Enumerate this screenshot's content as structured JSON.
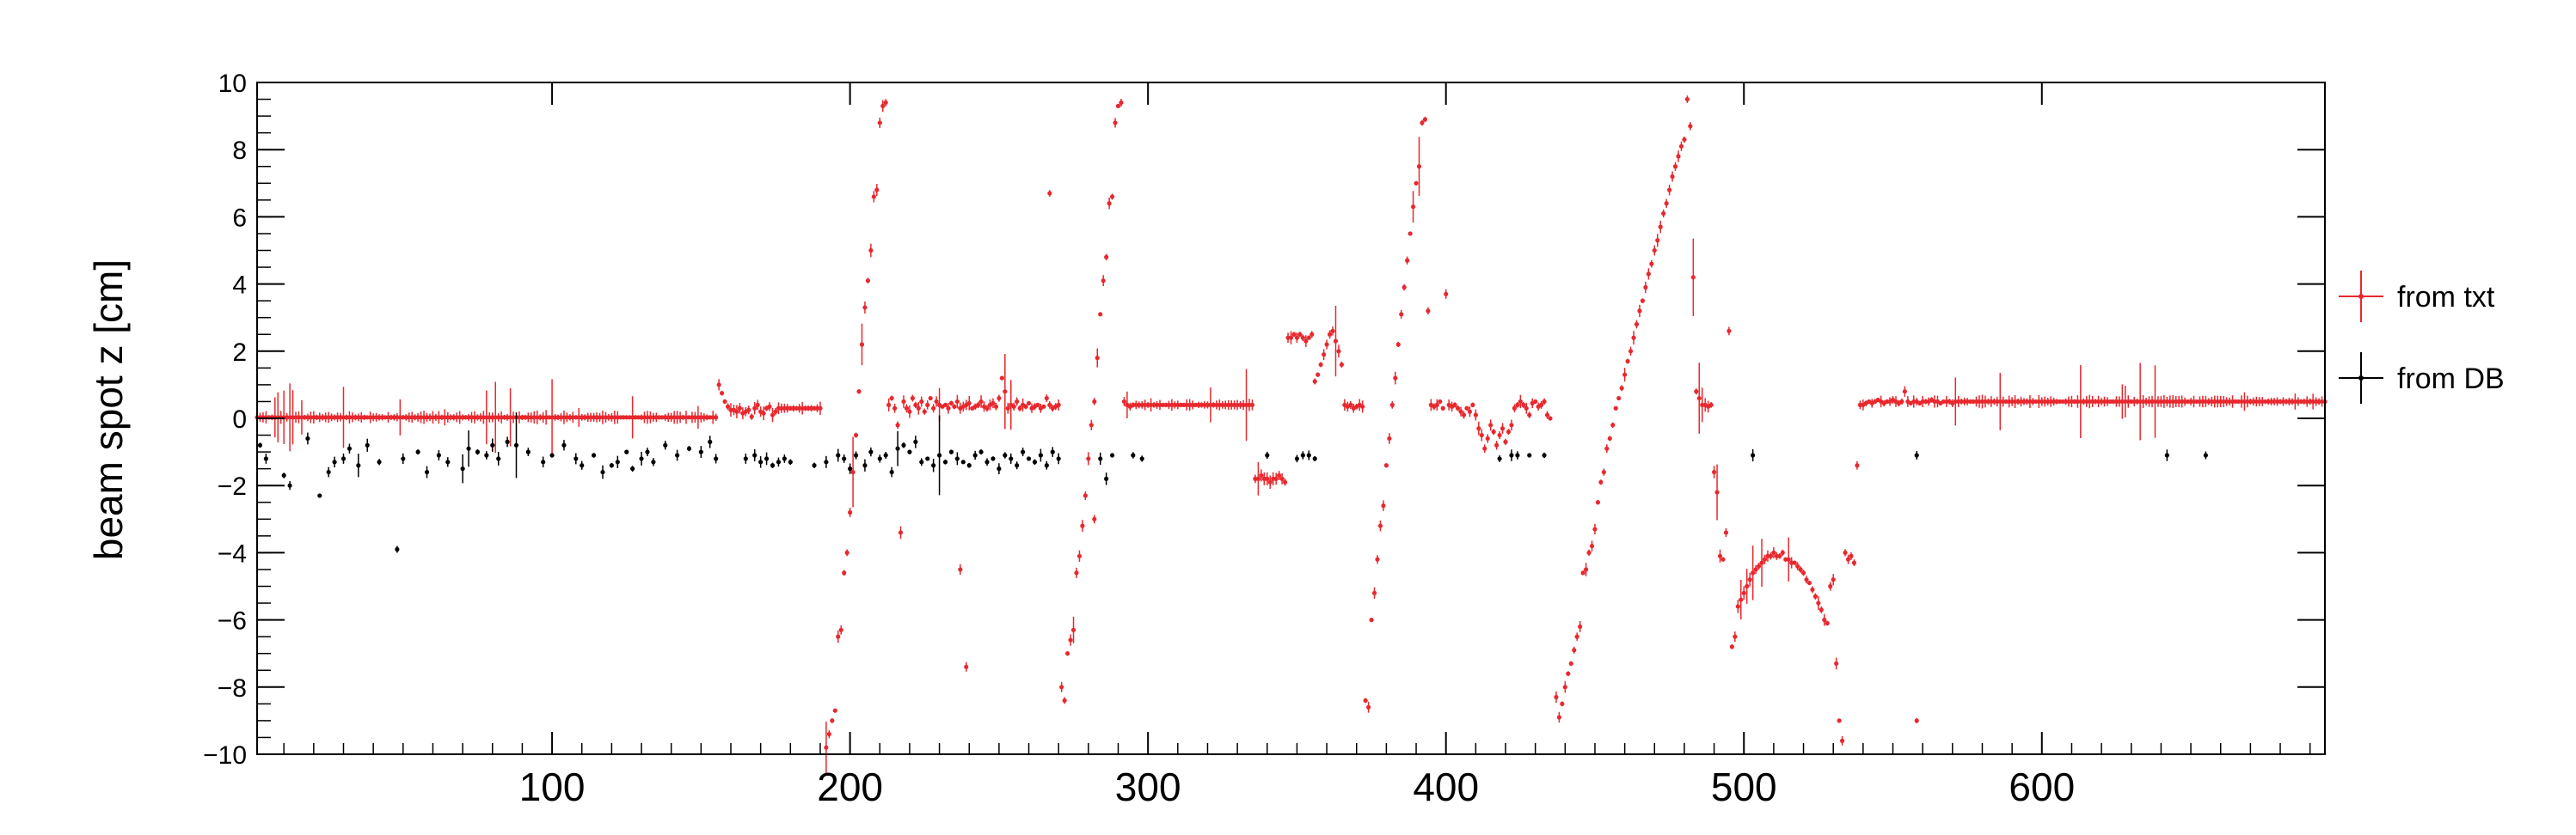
{
  "chart_data": {
    "type": "scatter",
    "title": "",
    "xlabel": "",
    "ylabel": "beam spot z [cm]",
    "xlim": [
      1,
      695
    ],
    "ylim": [
      -10,
      10
    ],
    "x_tick_labels": [
      100,
      200,
      300,
      400,
      500,
      600
    ],
    "y_tick_labels": [
      -10,
      -8,
      -6,
      -4,
      -2,
      0,
      2,
      4,
      6,
      8,
      10
    ],
    "grid": false,
    "legend_position": "right",
    "series": [
      {
        "name": "from txt",
        "color": "#e8282e",
        "segments": [
          {
            "x_from": 1,
            "x_to": 155,
            "values": [
              0.03
            ]
          },
          {
            "x_from": 156,
            "x_to": 160,
            "values": [
              1.0,
              0.75,
              0.5,
              0.35,
              0.25
            ]
          },
          {
            "x_from": 161,
            "x_to": 175,
            "values": [
              0.25,
              0.2,
              0.3,
              0.15,
              0.2,
              0.25,
              0.05,
              0.3,
              0.4,
              0.2,
              0.15,
              0.3,
              0.35,
              0.1,
              0.2
            ]
          },
          {
            "x_from": 176,
            "x_to": 190,
            "values": [
              0.3
            ]
          },
          {
            "x_from": 192,
            "x_to": 212,
            "values": [
              -9.8,
              -9.4,
              -9.0,
              -8.7,
              -6.5,
              -6.3,
              -4.6,
              -4.0,
              -2.8,
              -1.6,
              -0.5,
              0.8,
              2.2,
              3.3,
              4.1,
              5.0,
              6.6,
              6.8,
              8.8,
              9.3,
              9.4
            ]
          },
          {
            "x_from": 213,
            "x_to": 230,
            "values": [
              0.4,
              0.6,
              0.3,
              -0.2,
              -3.4,
              0.5,
              0.3,
              0.2,
              0.6,
              0.4,
              0.3,
              0.5,
              0.2,
              0.4,
              0.6,
              0.3,
              0.5,
              0.4
            ]
          },
          {
            "x_from": 231,
            "x_to": 270,
            "values": [
              0.35,
              0.4,
              0.3,
              0.45,
              0.35,
              0.5,
              0.3,
              0.35,
              0.4,
              0.45,
              0.3,
              0.35,
              0.4,
              0.5,
              0.35,
              0.3,
              0.4,
              0.45,
              0.35,
              0.6,
              1.2,
              0.8,
              0.3,
              0.4,
              0.35,
              0.5,
              0.3,
              0.4,
              0.35,
              0.45,
              0.3,
              0.35,
              0.4,
              0.3,
              0.35,
              0.6,
              0.4,
              0.3,
              0.35,
              0.4
            ]
          },
          {
            "x_from": 271,
            "x_to": 295,
            "values": [
              -8.0,
              -8.4,
              -7.0,
              -6.6,
              -6.3,
              -4.6,
              -4.1,
              -3.2,
              -2.3,
              -1.2,
              -0.2,
              0.5,
              1.8,
              3.1,
              4.1,
              4.8,
              6.4,
              6.6,
              8.8,
              9.3,
              9.4,
              0.5,
              0.4,
              0.35,
              0.4
            ]
          },
          {
            "x_from": 296,
            "x_to": 335,
            "values": [
              0.4
            ]
          },
          {
            "x_from": 336,
            "x_to": 355,
            "values": [
              -1.8,
              -1.8,
              -1.7,
              -1.8,
              -1.8,
              -1.9,
              -1.8,
              -1.8,
              -1.7,
              -1.8,
              -1.9,
              2.4,
              2.4,
              2.5,
              2.4,
              2.5,
              2.4,
              2.3,
              2.4,
              2.5
            ]
          },
          {
            "x_from": 356,
            "x_to": 365,
            "values": [
              1.1,
              1.3,
              1.6,
              1.9,
              2.2,
              2.5,
              2.6,
              2.3,
              2.0,
              1.6
            ]
          },
          {
            "x_from": 366,
            "x_to": 376,
            "values": [
              0.4,
              0.35,
              0.4,
              0.3,
              0.35,
              0.4,
              0.35,
              -8.4,
              -8.6,
              -6.0,
              -5.2
            ]
          },
          {
            "x_from": 377,
            "x_to": 396,
            "values": [
              -4.2,
              -3.2,
              -2.6,
              -1.4,
              -0.6,
              0.4,
              1.2,
              2.2,
              3.1,
              3.9,
              4.7,
              5.5,
              6.3,
              7.0,
              7.5,
              8.8,
              8.9,
              3.2,
              0.4,
              0.35
            ]
          },
          {
            "x_from": 397,
            "x_to": 410,
            "values": [
              0.4,
              0.5,
              0.3,
              3.7,
              0.4,
              0.35,
              0.4,
              0.3,
              0.2,
              0.1,
              0.3,
              0.2,
              0.4,
              0.1
            ]
          },
          {
            "x_from": 411,
            "x_to": 435,
            "values": [
              -0.3,
              -0.5,
              -0.9,
              -0.6,
              -0.2,
              -0.4,
              -0.8,
              -0.5,
              -0.3,
              -0.7,
              -0.4,
              -0.2,
              0.3,
              0.4,
              0.5,
              0.4,
              0.3,
              0.1,
              0.45,
              0.5,
              0.35,
              0.4,
              0.5,
              0.1,
              0.0
            ]
          },
          {
            "x_from": 437,
            "x_to": 492,
            "values": [
              -8.3,
              -8.9,
              -8.5,
              -8.0,
              -7.6,
              -7.3,
              -6.9,
              -6.5,
              -6.2,
              -4.6,
              -4.5,
              -4.0,
              -3.8,
              -3.3,
              -2.5,
              -1.9,
              -1.6,
              -0.9,
              -0.6,
              -0.2,
              0.3,
              0.6,
              0.9,
              1.3,
              1.7,
              2.0,
              2.4,
              2.8,
              3.2,
              3.5,
              3.9,
              4.3,
              4.6,
              5.0,
              5.3,
              5.7,
              6.1,
              6.4,
              6.8,
              7.2,
              7.5,
              7.8,
              8.1,
              8.3,
              9.5,
              8.7,
              4.2,
              0.8,
              0.6,
              0.4,
              0.4,
              0.35,
              0.4,
              -1.6,
              -2.2,
              -4.1
            ]
          },
          {
            "x_from": 493,
            "x_to": 515,
            "values": [
              -4.2,
              -3.4,
              2.6,
              -6.8,
              -6.5,
              -5.6,
              -5.4,
              -5.2,
              -5.0,
              -4.8,
              -4.6,
              -4.5,
              -4.4,
              -4.3,
              -4.2,
              -4.1,
              -4.1,
              -4.0,
              -4.1,
              -4.1,
              -4.0,
              -4.2,
              -4.2
            ]
          },
          {
            "x_from": 516,
            "x_to": 572,
            "values": [
              -4.3,
              -4.3,
              -4.4,
              -4.5,
              -4.6,
              -4.8,
              -4.9,
              -5.1,
              -5.3,
              -5.5,
              -5.7,
              -6.0,
              -6.1,
              -5.0,
              -4.8,
              -7.3,
              -9.0,
              -9.6,
              -4.0,
              -4.2,
              -4.1,
              -4.3,
              -1.4,
              0.4,
              0.4,
              0.45,
              0.5,
              0.45,
              0.5,
              0.55,
              0.5,
              0.45,
              0.5,
              0.5,
              0.55,
              0.5,
              0.45,
              0.5,
              0.8,
              0.5,
              0.45,
              0.5,
              0.5,
              0.45,
              0.5,
              0.5,
              0.5,
              0.55,
              0.5,
              0.5,
              0.45,
              0.5,
              0.5,
              0.5,
              0.45,
              0.5,
              0.5
            ]
          },
          {
            "x_from": 573,
            "x_to": 695,
            "values": [
              0.5
            ]
          }
        ],
        "isolated_points": [
          {
            "x": 237,
            "y": -4.5
          },
          {
            "x": 239,
            "y": -7.4
          },
          {
            "x": 267,
            "y": 6.7
          },
          {
            "x": 282,
            "y": -3.0
          },
          {
            "x": 558,
            "y": -9.0
          }
        ]
      },
      {
        "name": "from DB",
        "color": "#000000",
        "points": [
          [
            2,
            -0.8
          ],
          [
            4,
            -1.2
          ],
          [
            10,
            -1.7
          ],
          [
            12,
            -2.0
          ],
          [
            18,
            -0.6
          ],
          [
            22,
            -2.3
          ],
          [
            25,
            -1.6
          ],
          [
            27,
            -1.3
          ],
          [
            30,
            -1.2
          ],
          [
            32,
            -0.9
          ],
          [
            35,
            -1.4
          ],
          [
            38,
            -0.8
          ],
          [
            42,
            -1.3
          ],
          [
            48,
            -3.9
          ],
          [
            50,
            -1.2
          ],
          [
            55,
            -1.0
          ],
          [
            58,
            -1.6
          ],
          [
            62,
            -1.1
          ],
          [
            65,
            -1.3
          ],
          [
            70,
            -1.5
          ],
          [
            72,
            -0.9
          ],
          [
            75,
            -1.0
          ],
          [
            78,
            -1.1
          ],
          [
            80,
            -0.8
          ],
          [
            82,
            -1.2
          ],
          [
            85,
            -0.7
          ],
          [
            88,
            -0.8
          ],
          [
            92,
            -1.0
          ],
          [
            97,
            -1.3
          ],
          [
            100,
            -1.1
          ],
          [
            104,
            -0.8
          ],
          [
            108,
            -1.2
          ],
          [
            110,
            -1.4
          ],
          [
            114,
            -1.1
          ],
          [
            117,
            -1.6
          ],
          [
            120,
            -1.4
          ],
          [
            122,
            -1.3
          ],
          [
            125,
            -1.0
          ],
          [
            127,
            -1.5
          ],
          [
            130,
            -1.2
          ],
          [
            132,
            -1.0
          ],
          [
            134,
            -1.3
          ],
          [
            138,
            -0.8
          ],
          [
            142,
            -1.1
          ],
          [
            146,
            -0.9
          ],
          [
            150,
            -1.0
          ],
          [
            153,
            -0.7
          ],
          [
            155,
            -1.2
          ],
          [
            165,
            -1.2
          ],
          [
            168,
            -1.1
          ],
          [
            170,
            -1.3
          ],
          [
            172,
            -1.2
          ],
          [
            174,
            -1.4
          ],
          [
            176,
            -1.3
          ],
          [
            178,
            -1.2
          ],
          [
            180,
            -1.3
          ],
          [
            188,
            -1.4
          ],
          [
            192,
            -1.3
          ],
          [
            196,
            -1.1
          ],
          [
            198,
            -1.2
          ],
          [
            200,
            -1.5
          ],
          [
            202,
            -1.1
          ],
          [
            205,
            -1.4
          ],
          [
            207,
            -1.0
          ],
          [
            210,
            -1.2
          ],
          [
            212,
            -1.1
          ],
          [
            214,
            -1.6
          ],
          [
            216,
            -0.9
          ],
          [
            218,
            -0.8
          ],
          [
            220,
            -1.0
          ],
          [
            222,
            -0.7
          ],
          [
            224,
            -1.3
          ],
          [
            226,
            -1.2
          ],
          [
            228,
            -1.4
          ],
          [
            230,
            -1.1
          ],
          [
            232,
            -1.3
          ],
          [
            234,
            -1.0
          ],
          [
            236,
            -1.2
          ],
          [
            238,
            -1.3
          ],
          [
            240,
            -1.4
          ],
          [
            242,
            -1.1
          ],
          [
            244,
            -1.0
          ],
          [
            246,
            -1.3
          ],
          [
            248,
            -1.2
          ],
          [
            250,
            -1.5
          ],
          [
            252,
            -1.1
          ],
          [
            254,
            -1.2
          ],
          [
            256,
            -1.4
          ],
          [
            258,
            -1.0
          ],
          [
            260,
            -1.2
          ],
          [
            262,
            -1.3
          ],
          [
            264,
            -1.1
          ],
          [
            266,
            -1.4
          ],
          [
            268,
            -1.0
          ],
          [
            270,
            -1.2
          ],
          [
            284,
            -1.2
          ],
          [
            286,
            -1.8
          ],
          [
            288,
            -1.1
          ],
          [
            295,
            -1.1
          ],
          [
            298,
            -1.2
          ],
          [
            340,
            -1.1
          ],
          [
            350,
            -1.2
          ],
          [
            352,
            -1.1
          ],
          [
            354,
            -1.1
          ],
          [
            356,
            -1.2
          ],
          [
            418,
            -1.2
          ],
          [
            422,
            -1.1
          ],
          [
            424,
            -1.1
          ],
          [
            428,
            -1.1
          ],
          [
            433,
            -1.1
          ],
          [
            503,
            -1.1
          ],
          [
            558,
            -1.1
          ],
          [
            642,
            -1.1
          ],
          [
            655,
            -1.1
          ]
        ]
      }
    ]
  }
}
